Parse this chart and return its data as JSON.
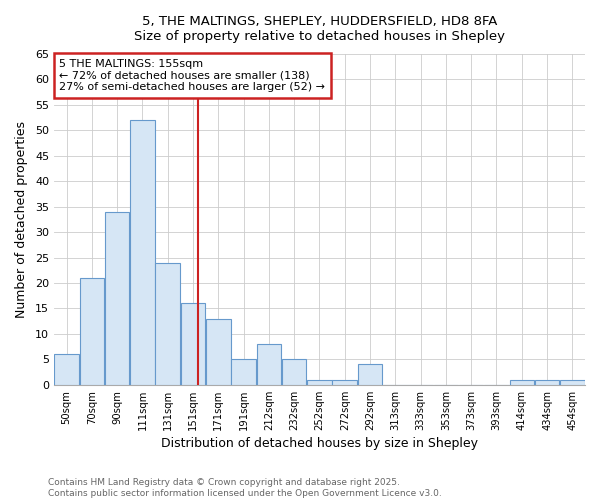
{
  "title_line1": "5, THE MALTINGS, SHEPLEY, HUDDERSFIELD, HD8 8FA",
  "title_line2": "Size of property relative to detached houses in Shepley",
  "xlabel": "Distribution of detached houses by size in Shepley",
  "ylabel": "Number of detached properties",
  "categories": [
    "50sqm",
    "70sqm",
    "90sqm",
    "111sqm",
    "131sqm",
    "151sqm",
    "171sqm",
    "191sqm",
    "212sqm",
    "232sqm",
    "252sqm",
    "272sqm",
    "292sqm",
    "313sqm",
    "333sqm",
    "353sqm",
    "373sqm",
    "393sqm",
    "414sqm",
    "434sqm",
    "454sqm"
  ],
  "values": [
    6,
    21,
    34,
    52,
    24,
    16,
    13,
    5,
    8,
    5,
    1,
    1,
    4,
    0,
    0,
    0,
    0,
    0,
    1,
    1,
    1
  ],
  "bar_color": "#d6e6f5",
  "bar_edge_color": "#6699cc",
  "grid_color": "#cccccc",
  "background_color": "#ffffff",
  "plot_bg_color": "#ffffff",
  "vline_color": "#cc2222",
  "annotation_text": "5 THE MALTINGS: 155sqm\n← 72% of detached houses are smaller (138)\n27% of semi-detached houses are larger (52) →",
  "annotation_box_color": "#ffffff",
  "annotation_box_edge": "#cc2222",
  "ylim": [
    0,
    65
  ],
  "yticks": [
    0,
    5,
    10,
    15,
    20,
    25,
    30,
    35,
    40,
    45,
    50,
    55,
    60,
    65
  ],
  "footnote_line1": "Contains HM Land Registry data © Crown copyright and database right 2025.",
  "footnote_line2": "Contains public sector information licensed under the Open Government Licence v3.0.",
  "vline_index": 5.2
}
